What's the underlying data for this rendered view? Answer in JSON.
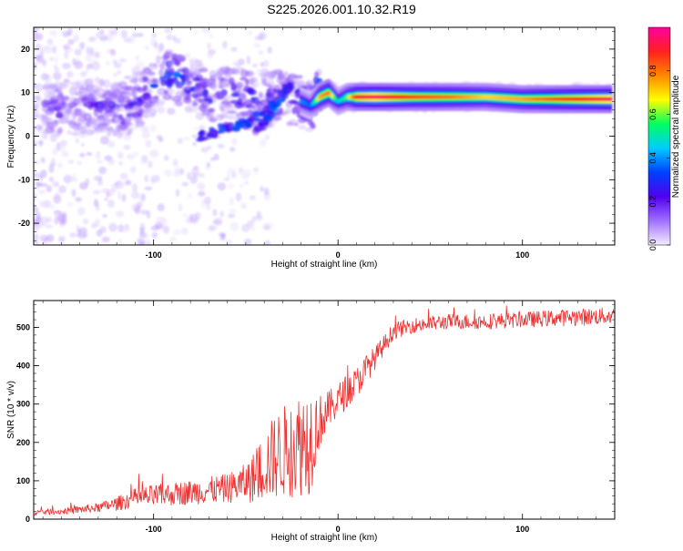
{
  "title": "S225.2026.001.10.32.R19",
  "colorbar": {
    "label": "Normalized spectral amplitude",
    "ticks": [
      "0.0",
      "0.2",
      "0.4",
      "0.6",
      "0.8"
    ],
    "tick_values": [
      0.0,
      0.2,
      0.4,
      0.6,
      0.8
    ],
    "range": [
      0,
      1
    ],
    "stops": [
      "#f4eeff",
      "#a070ff",
      "#5000ee",
      "#0040ff",
      "#00ccff",
      "#00ff60",
      "#ffff00",
      "#ff8800",
      "#ff2020",
      "#ff00a0"
    ]
  },
  "chart_data": [
    {
      "type": "heatmap",
      "title": "S225.2026.001.10.32.R19",
      "xlabel": "Height of straight line (km)",
      "ylabel": "Frequency (Hz)",
      "xlim": [
        -165,
        150
      ],
      "ylim": [
        -25,
        25
      ],
      "xticks": [
        -100,
        0,
        100
      ],
      "yticks": [
        -20,
        -10,
        0,
        10,
        20
      ],
      "ridge": {
        "description": "dominant spectral ridge",
        "x": [
          -150,
          -130,
          -115,
          -100,
          -90,
          -80,
          -70,
          -60,
          -50,
          -40,
          -30,
          -20,
          -15,
          -10,
          -5,
          0,
          5,
          10,
          20,
          40,
          60,
          80,
          100,
          120,
          148
        ],
        "freq": [
          6,
          7,
          6,
          11,
          14,
          12,
          9,
          10,
          9,
          8,
          9,
          8,
          7,
          9,
          10,
          8,
          9,
          9,
          9,
          9,
          9,
          9,
          8.5,
          8.5,
          8.5
        ],
        "amplitude": [
          0.25,
          0.25,
          0.3,
          0.35,
          0.45,
          0.35,
          0.35,
          0.3,
          0.35,
          0.3,
          0.35,
          0.4,
          0.35,
          0.75,
          0.8,
          0.45,
          0.6,
          0.9,
          0.95,
          0.85,
          0.8,
          0.7,
          0.75,
          0.85,
          0.95
        ]
      },
      "branches": [
        {
          "x": [
            -75,
            -60,
            -50,
            -40,
            -30
          ],
          "freq": [
            0,
            2,
            3,
            5,
            9
          ],
          "amplitude": [
            0.25,
            0.3,
            0.3,
            0.35,
            0.3
          ]
        },
        {
          "x": [
            -45,
            -40,
            -35,
            -30,
            -25
          ],
          "freq": [
            1,
            3,
            6,
            10,
            12
          ],
          "amplitude": [
            0.2,
            0.3,
            0.35,
            0.3,
            0.25
          ]
        }
      ]
    },
    {
      "type": "line",
      "xlabel": "Height of straight line (km)",
      "ylabel": "SNR (10 * v/v)",
      "xlim": [
        -165,
        150
      ],
      "ylim": [
        0,
        570
      ],
      "xticks": [
        -100,
        0,
        100
      ],
      "yticks": [
        0,
        100,
        200,
        300,
        400,
        500
      ],
      "color": "#ee3030",
      "series": [
        {
          "name": "SNR",
          "x": [
            -165,
            -150,
            -140,
            -130,
            -120,
            -110,
            -100,
            -90,
            -80,
            -70,
            -60,
            -50,
            -45,
            -40,
            -35,
            -30,
            -25,
            -20,
            -15,
            -10,
            -5,
            0,
            5,
            10,
            15,
            20,
            25,
            30,
            40,
            50,
            60,
            80,
            100,
            120,
            148
          ],
          "mean": [
            18,
            20,
            25,
            30,
            40,
            55,
            60,
            65,
            70,
            75,
            80,
            95,
            110,
            140,
            160,
            175,
            185,
            200,
            210,
            255,
            285,
            310,
            335,
            355,
            390,
            420,
            455,
            490,
            505,
            510,
            515,
            515,
            520,
            525,
            530
          ],
          "jitter": [
            8,
            8,
            10,
            12,
            18,
            25,
            30,
            30,
            32,
            35,
            38,
            50,
            70,
            90,
            110,
            120,
            130,
            140,
            150,
            70,
            50,
            45,
            45,
            40,
            40,
            30,
            25,
            22,
            20,
            20,
            20,
            20,
            20,
            22,
            22
          ]
        }
      ]
    }
  ]
}
